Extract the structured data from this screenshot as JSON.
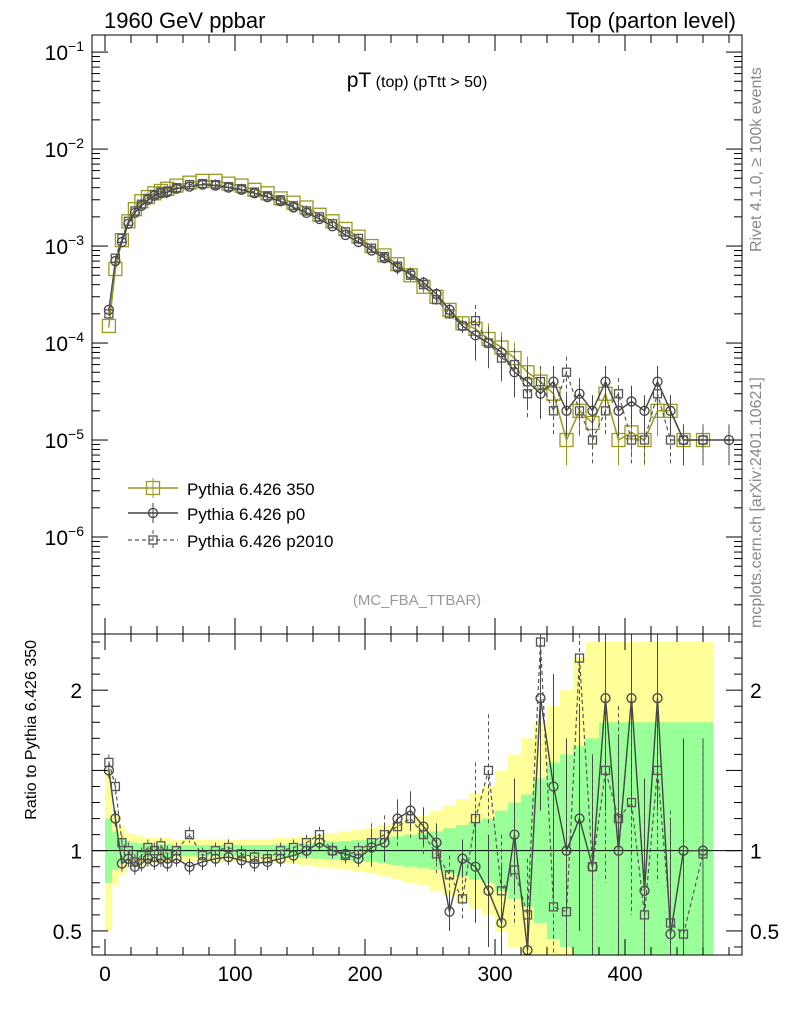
{
  "header": {
    "left": "1960 GeV ppbar",
    "right": "Top (parton level)"
  },
  "side_text": {
    "rivet": "Rivet 4.1.0, ≥ 100k events",
    "mcplots": "mcplots.cern.ch [arXiv:2401.10621]"
  },
  "colors": {
    "p350": "#999922",
    "p0": "#444444",
    "p2010": "#555555",
    "band_inner": "#99ff99",
    "band_outer": "#ffff99"
  },
  "chart_data": [
    {
      "type": "line",
      "title_main": "pT",
      "title_sub": " (top) (pTtt > 50)",
      "tag": "(MC_FBA_TTBAR)",
      "xlabel": "",
      "ylabel": "",
      "xlim": [
        -10,
        490
      ],
      "ylog": true,
      "ylim": [
        1e-07,
        0.15
      ],
      "y_ticks": [
        {
          "v": 0.1,
          "base": "10",
          "exp": "−1"
        },
        {
          "v": 0.01,
          "base": "10",
          "exp": "−2"
        },
        {
          "v": 0.001,
          "base": "10",
          "exp": "−3"
        },
        {
          "v": 0.0001,
          "base": "10",
          "exp": "−4"
        },
        {
          "v": 1e-05,
          "base": "10",
          "exp": "−5"
        },
        {
          "v": 1e-06,
          "base": "10",
          "exp": "−6"
        }
      ],
      "legend": [
        {
          "name": "Pythia 6.426 350",
          "style": "square-solid"
        },
        {
          "name": "Pythia 6.426 p0",
          "style": "circle-solid"
        },
        {
          "name": "Pythia 6.426 p2010",
          "style": "square-dashed"
        }
      ],
      "series": [
        {
          "name": "Pythia 6.426 350",
          "x": [
            3,
            8,
            13,
            18,
            23,
            28,
            33,
            38,
            43,
            48,
            55,
            65,
            75,
            85,
            95,
            105,
            115,
            125,
            135,
            145,
            155,
            165,
            175,
            185,
            195,
            205,
            215,
            225,
            235,
            245,
            255,
            265,
            275,
            285,
            295,
            305,
            315,
            325,
            335,
            345,
            355,
            365,
            375,
            385,
            395,
            405,
            415,
            425,
            435,
            445,
            460
          ],
          "y": [
            0.00015,
            0.00058,
            0.00115,
            0.0018,
            0.0024,
            0.0029,
            0.0032,
            0.0035,
            0.0037,
            0.0039,
            0.0042,
            0.0045,
            0.0047,
            0.0047,
            0.0044,
            0.0042,
            0.0038,
            0.0035,
            0.0031,
            0.0028,
            0.0025,
            0.0021,
            0.0018,
            0.0015,
            0.00125,
            0.001,
            0.0008,
            0.00065,
            0.0005,
            0.00038,
            0.0003,
            0.00022,
            0.00016,
            0.00014,
            0.00011,
            9e-05,
            7e-05,
            5e-05,
            4e-05,
            3e-05,
            1e-05,
            2e-05,
            1.5e-05,
            3e-05,
            1e-05,
            1.2e-05,
            1e-05,
            2e-05,
            2e-05,
            1e-05,
            1e-05
          ]
        },
        {
          "name": "Pythia 6.426 p0",
          "x": [
            3,
            8,
            13,
            18,
            23,
            28,
            33,
            38,
            43,
            48,
            55,
            65,
            75,
            85,
            95,
            105,
            115,
            125,
            135,
            145,
            155,
            165,
            175,
            185,
            195,
            205,
            215,
            225,
            235,
            245,
            255,
            265,
            275,
            285,
            295,
            305,
            315,
            325,
            335,
            345,
            355,
            365,
            375,
            385,
            395,
            405,
            415,
            425,
            435,
            445,
            460,
            480
          ],
          "y": [
            0.00022,
            0.0007,
            0.0011,
            0.0017,
            0.0022,
            0.0026,
            0.003,
            0.0033,
            0.0035,
            0.0036,
            0.0039,
            0.0041,
            0.0043,
            0.0042,
            0.004,
            0.0038,
            0.0035,
            0.0032,
            0.0029,
            0.0025,
            0.0022,
            0.0019,
            0.0016,
            0.0013,
            0.0011,
            0.0009,
            0.00075,
            0.0006,
            0.00052,
            0.00042,
            0.00032,
            0.00022,
            0.00015,
            0.00012,
            0.0001,
            8e-05,
            5e-05,
            4e-05,
            3e-05,
            4e-05,
            2e-05,
            3e-05,
            2e-05,
            4e-05,
            2e-05,
            2.5e-05,
            2e-05,
            4e-05,
            2e-05,
            1e-05,
            1e-05,
            1e-05
          ]
        },
        {
          "name": "Pythia 6.426 p2010",
          "x": [
            3,
            8,
            13,
            18,
            23,
            28,
            33,
            38,
            43,
            48,
            55,
            65,
            75,
            85,
            95,
            105,
            115,
            125,
            135,
            145,
            155,
            165,
            175,
            185,
            195,
            205,
            215,
            225,
            235,
            245,
            255,
            265,
            275,
            285,
            295,
            305,
            315,
            325,
            335,
            345,
            355,
            365,
            375,
            385,
            395,
            405,
            415,
            425,
            435,
            445,
            460
          ],
          "y": [
            0.0002,
            0.00075,
            0.0012,
            0.0018,
            0.0023,
            0.0027,
            0.0031,
            0.0034,
            0.0036,
            0.0037,
            0.004,
            0.0043,
            0.0044,
            0.0043,
            0.0041,
            0.0039,
            0.0036,
            0.0033,
            0.003,
            0.0026,
            0.0023,
            0.002,
            0.0017,
            0.0014,
            0.0012,
            0.00095,
            0.00078,
            0.00062,
            0.0005,
            0.0004,
            0.00028,
            0.0002,
            0.00015,
            0.00017,
            0.0001,
            7e-05,
            6e-05,
            3e-05,
            4e-05,
            2e-05,
            5e-05,
            2e-05,
            1e-05,
            2e-05,
            3e-05,
            1e-05,
            1e-05,
            3e-05,
            1e-05,
            1e-05,
            1e-05
          ]
        }
      ]
    },
    {
      "type": "line",
      "ylabel": "Ratio to Pythia 6.426 350",
      "xlabel": "",
      "xlim": [
        -10,
        490
      ],
      "ylim": [
        0.35,
        2.35
      ],
      "x_ticks": [
        0,
        100,
        200,
        300,
        400
      ],
      "y_ticks": [
        {
          "v": 0.5,
          "label": "0.5"
        },
        {
          "v": 1,
          "label": "1"
        },
        {
          "v": 2,
          "label": "2"
        }
      ],
      "bands": {
        "x": [
          3,
          8,
          13,
          18,
          23,
          28,
          33,
          38,
          43,
          48,
          55,
          65,
          75,
          85,
          95,
          105,
          115,
          125,
          135,
          145,
          155,
          165,
          175,
          185,
          195,
          205,
          215,
          225,
          235,
          245,
          255,
          265,
          275,
          285,
          295,
          305,
          315,
          325,
          335,
          345,
          355,
          365,
          375,
          385,
          395,
          405,
          415,
          425,
          435,
          445,
          460
        ],
        "inner": [
          0.2,
          0.12,
          0.08,
          0.06,
          0.05,
          0.045,
          0.04,
          0.04,
          0.04,
          0.04,
          0.035,
          0.035,
          0.035,
          0.035,
          0.035,
          0.035,
          0.035,
          0.035,
          0.04,
          0.04,
          0.045,
          0.05,
          0.055,
          0.06,
          0.065,
          0.07,
          0.08,
          0.09,
          0.1,
          0.11,
          0.12,
          0.14,
          0.16,
          0.18,
          0.2,
          0.25,
          0.3,
          0.35,
          0.45,
          0.55,
          0.6,
          0.65,
          0.7,
          0.8,
          0.8,
          0.8,
          0.8,
          0.8,
          0.8,
          0.8,
          0.8
        ],
        "outer": [
          0.5,
          0.22,
          0.15,
          0.11,
          0.1,
          0.09,
          0.08,
          0.08,
          0.08,
          0.08,
          0.07,
          0.07,
          0.07,
          0.07,
          0.07,
          0.07,
          0.07,
          0.07,
          0.08,
          0.08,
          0.09,
          0.1,
          0.11,
          0.12,
          0.13,
          0.14,
          0.16,
          0.18,
          0.2,
          0.22,
          0.25,
          0.28,
          0.32,
          0.36,
          0.4,
          0.5,
          0.6,
          0.7,
          0.8,
          0.9,
          1.0,
          1.2,
          1.3,
          1.3,
          1.3,
          1.3,
          1.3,
          1.3,
          1.3,
          1.3,
          1.3
        ]
      },
      "series": [
        {
          "name": "Pythia 6.426 p0",
          "x": [
            3,
            8,
            13,
            18,
            23,
            28,
            33,
            38,
            43,
            48,
            55,
            65,
            75,
            85,
            95,
            105,
            115,
            125,
            135,
            145,
            155,
            165,
            175,
            185,
            195,
            205,
            215,
            225,
            235,
            245,
            255,
            265,
            275,
            285,
            295,
            305,
            315,
            325,
            335,
            345,
            355,
            365,
            375,
            385,
            395,
            405,
            415,
            425,
            435,
            445,
            460
          ],
          "y": [
            1.5,
            1.2,
            0.92,
            0.95,
            0.9,
            0.92,
            0.95,
            0.93,
            0.95,
            0.92,
            0.95,
            0.9,
            0.93,
            0.95,
            0.96,
            0.94,
            0.92,
            0.93,
            0.95,
            0.97,
            1.0,
            1.05,
            1.0,
            0.98,
            0.95,
            1.02,
            1.05,
            1.2,
            1.25,
            1.15,
            1.05,
            0.62,
            0.95,
            0.9,
            0.75,
            0.55,
            1.1,
            0.38,
            1.95,
            1.4,
            1.0,
            1.2,
            0.9,
            1.95,
            1.0,
            1.95,
            0.75,
            1.95,
            0.48,
            1.0,
            1.0
          ]
        },
        {
          "name": "Pythia 6.426 p2010",
          "x": [
            3,
            8,
            13,
            18,
            23,
            28,
            33,
            38,
            43,
            48,
            55,
            65,
            75,
            85,
            95,
            105,
            115,
            125,
            135,
            145,
            155,
            165,
            175,
            185,
            195,
            205,
            215,
            225,
            235,
            245,
            255,
            265,
            275,
            285,
            295,
            305,
            315,
            325,
            335,
            345,
            355,
            365,
            375,
            385,
            395,
            405,
            415,
            425,
            435,
            445,
            460
          ],
          "y": [
            1.55,
            1.4,
            1.05,
            1.0,
            0.93,
            0.97,
            1.02,
            1.0,
            1.03,
            0.98,
            1.0,
            1.1,
            0.97,
            1.0,
            1.02,
            0.98,
            0.96,
            0.95,
            1.0,
            1.02,
            1.05,
            1.1,
            1.0,
            0.97,
            1.0,
            1.05,
            1.1,
            1.15,
            1.2,
            1.1,
            0.98,
            0.85,
            0.7,
            1.2,
            1.5,
            0.75,
            0.88,
            0.6,
            2.3,
            0.65,
            0.62,
            2.2,
            0.9,
            1.5,
            1.2,
            1.3,
            0.6,
            1.5,
            0.55,
            0.48,
            0.98
          ]
        }
      ]
    }
  ]
}
